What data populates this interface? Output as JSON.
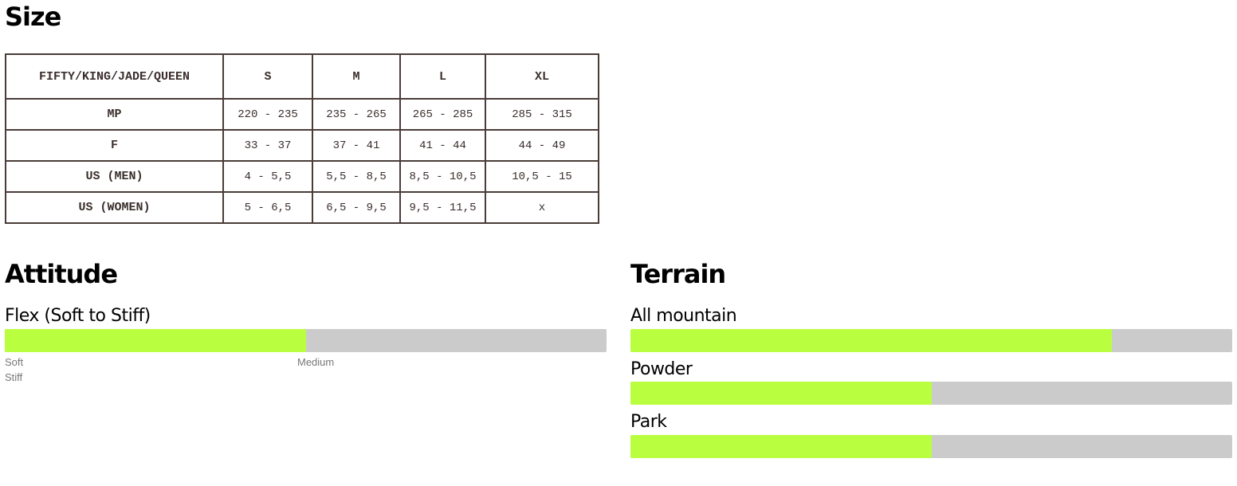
{
  "size": {
    "title": "Size",
    "headers": [
      "FIFTY/KING/JADE/QUEEN",
      "S",
      "M",
      "L",
      "XL"
    ],
    "rows": [
      [
        "MP",
        "220 - 235",
        "235 - 265",
        "265 - 285",
        "285 - 315"
      ],
      [
        "F",
        "33 - 37",
        "37 - 41",
        "41 - 44",
        "44 - 49"
      ],
      [
        "US (MEN)",
        "4 - 5,5",
        "5,5 - 8,5",
        "8,5 - 10,5",
        "10,5 - 15"
      ],
      [
        "US (WOMEN)",
        "5 - 6,5",
        "6,5 - 9,5",
        "9,5 - 11,5",
        "x"
      ]
    ]
  },
  "attitude": {
    "title": "Attitude",
    "flex": {
      "label": "Flex (Soft to Stiff)",
      "percent": 50,
      "ticks": [
        "Soft",
        "Medium",
        "Stiff"
      ]
    }
  },
  "terrain": {
    "title": "Terrain",
    "items": [
      {
        "label": "All mountain",
        "percent": 80
      },
      {
        "label": "Powder",
        "percent": 50
      },
      {
        "label": "Park",
        "percent": 50
      }
    ]
  },
  "colors": {
    "fill": "#b9ff40",
    "track": "#cbcbcb"
  }
}
